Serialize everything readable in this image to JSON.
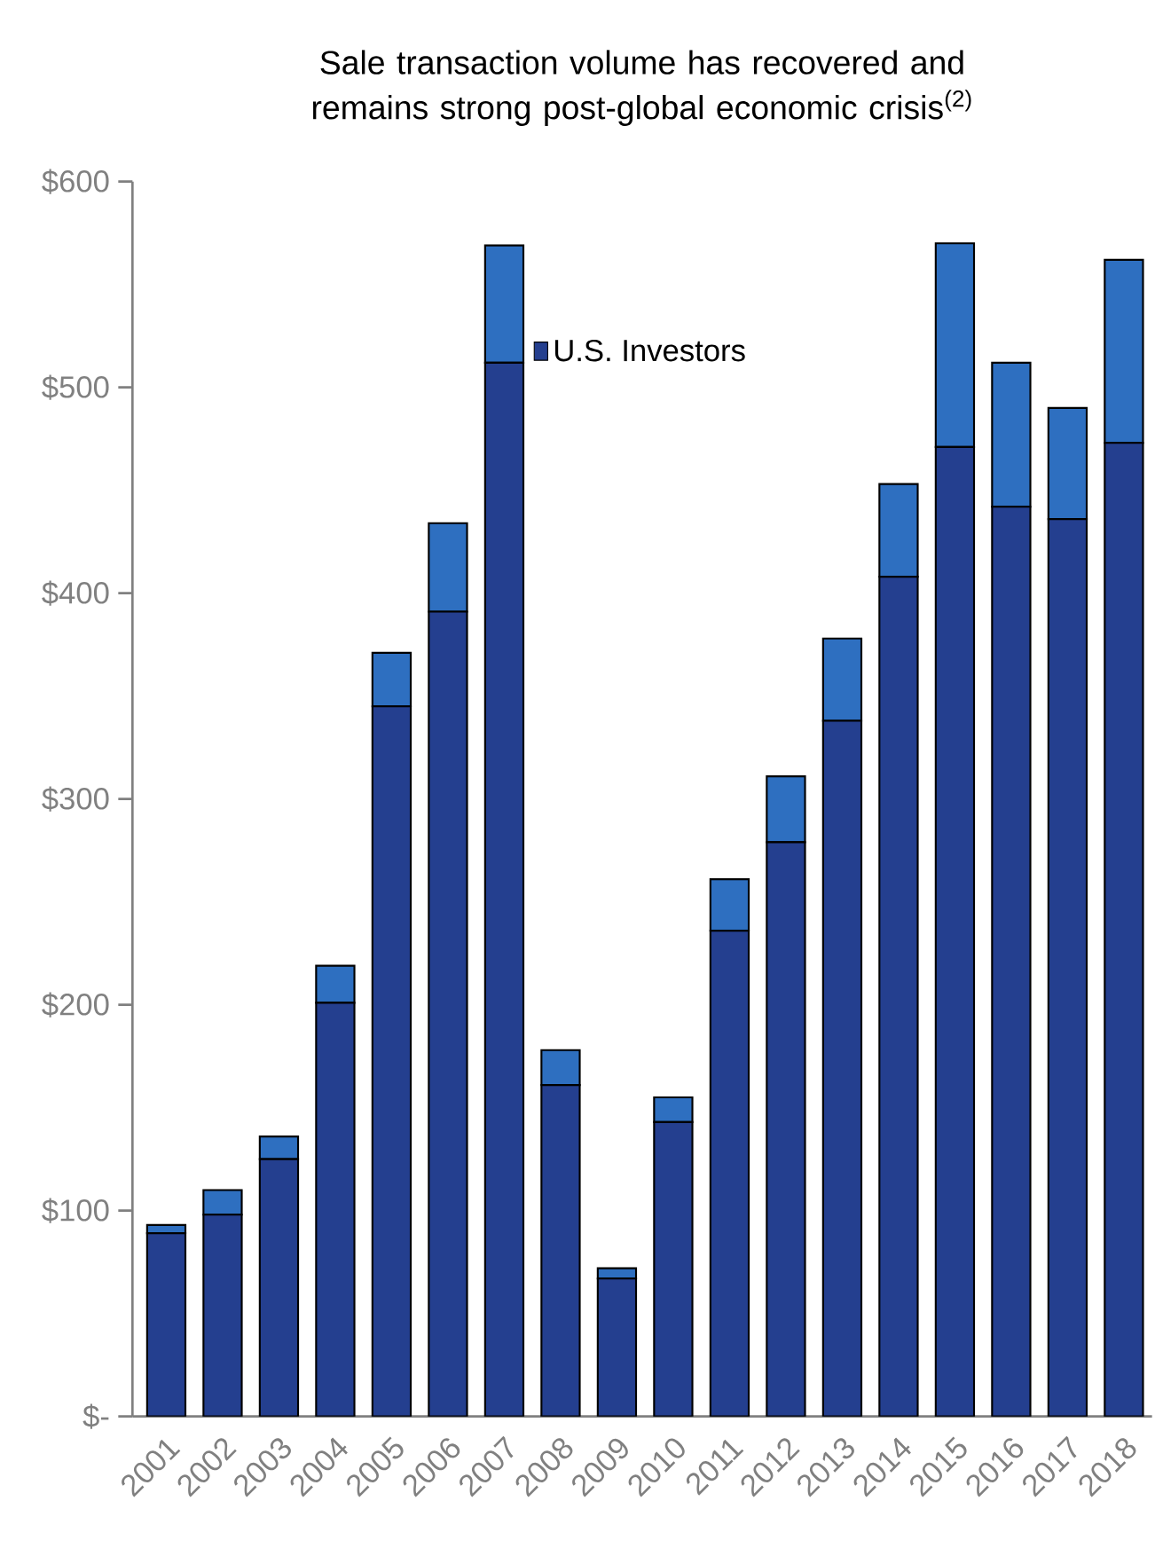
{
  "chart_data": {
    "type": "bar",
    "stacked": true,
    "title": "Sale transaction volume has recovered and remains strong post-global economic crisis$^{(2)}$",
    "categories": [
      "2001",
      "2002",
      "2003",
      "2004",
      "2005",
      "2006",
      "2007",
      "2008",
      "2009",
      "2010",
      "2011",
      "2012",
      "2013",
      "2014",
      "2015",
      "2016",
      "2017",
      "2018"
    ],
    "series": [
      {
        "name": "U.S. Investors",
        "color": "#243f8f",
        "values": [
          89,
          98,
          125,
          201,
          345,
          391,
          512,
          161,
          67,
          143,
          236,
          279,
          338,
          408,
          471,
          442,
          436,
          473
        ]
      },
      {
        "color": "#2e6fc0",
        "values": [
          4,
          12,
          11,
          18,
          26,
          43,
          57,
          17,
          5,
          12,
          25,
          32,
          40,
          45,
          99,
          70,
          54,
          89
        ]
      }
    ],
    "ylim": [
      0,
      600
    ],
    "yticks": [
      {
        "value": 0,
        "label": "$-"
      },
      {
        "value": 100,
        "label": "$100"
      },
      {
        "value": 200,
        "label": "$200"
      },
      {
        "value": 300,
        "label": "$300"
      },
      {
        "value": 400,
        "label": "$400"
      },
      {
        "value": 500,
        "label": "$500"
      },
      {
        "value": 600,
        "label": "$600"
      }
    ],
    "grid": false,
    "legend": "top"
  }
}
